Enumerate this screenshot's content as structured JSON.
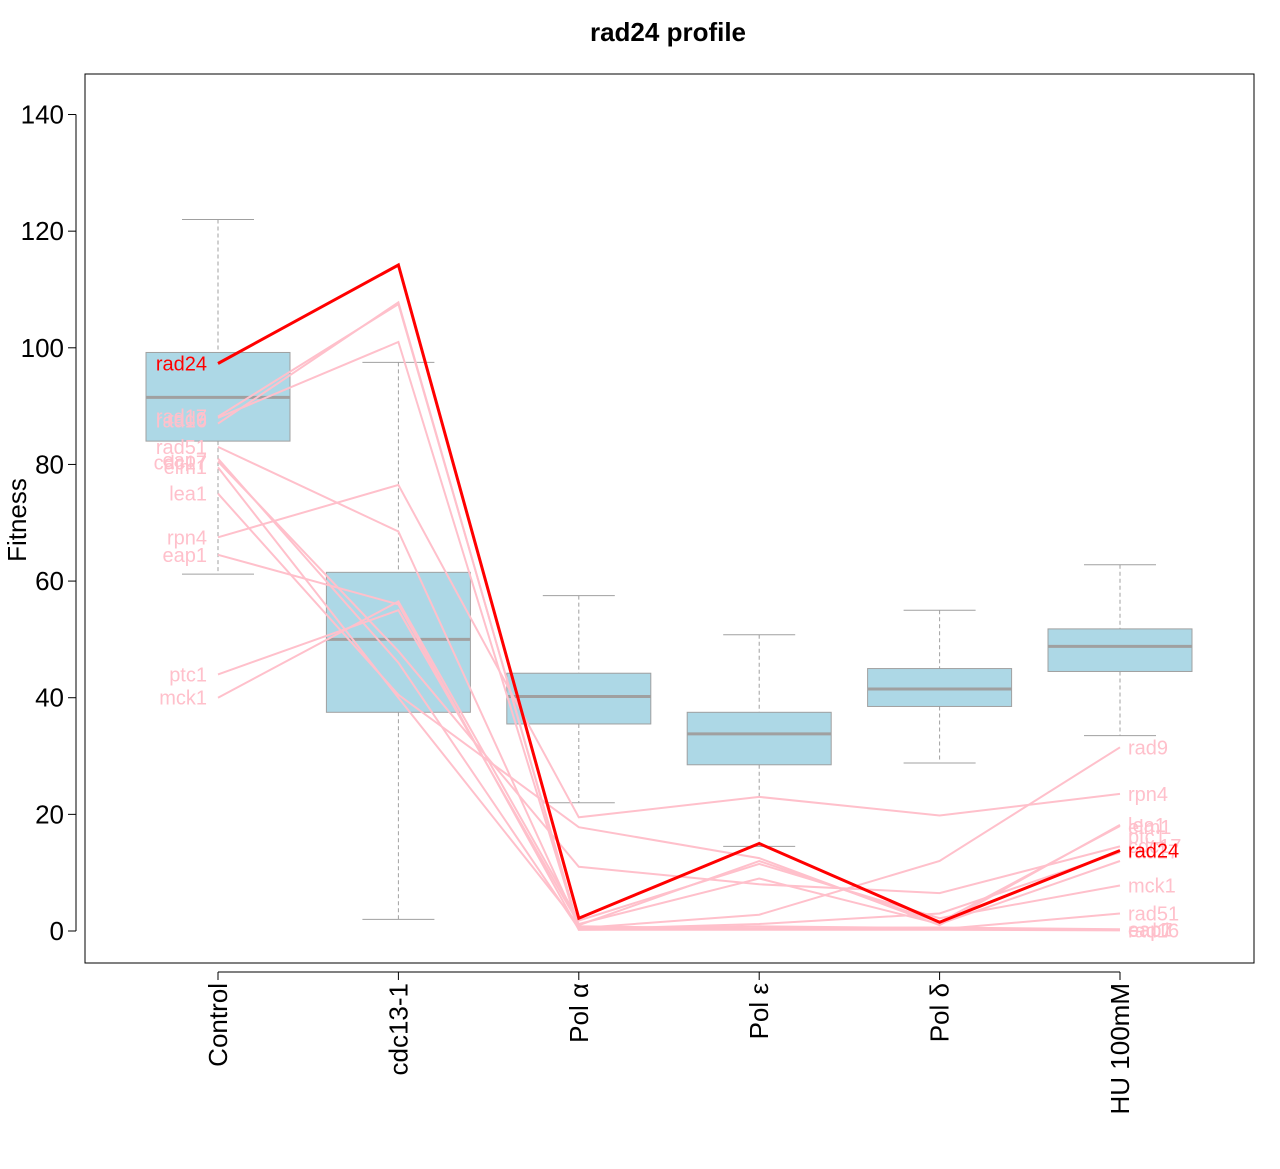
{
  "chart_data": {
    "type": "box",
    "title": "rad24 profile",
    "ylabel": "Fitness",
    "xlabel": "",
    "ylim": [
      -5,
      146
    ],
    "yticks": [
      0,
      20,
      40,
      60,
      80,
      100,
      120,
      140
    ],
    "categories": [
      "Control",
      "cdc13-1",
      "Pol α",
      "Pol ε",
      "Pol δ",
      "HU 100mM"
    ],
    "boxes": [
      {
        "category": "Control",
        "whisker_low": 61.2,
        "q1": 84,
        "median": 91.5,
        "q3": 99.2,
        "whisker_high": 122
      },
      {
        "category": "cdc13-1",
        "whisker_low": 2,
        "q1": 37.5,
        "median": 50,
        "q3": 61.5,
        "whisker_high": 97.5
      },
      {
        "category": "Pol α",
        "whisker_low": 22,
        "q1": 35.5,
        "median": 40.2,
        "q3": 44.2,
        "whisker_high": 57.5
      },
      {
        "category": "Pol ε",
        "whisker_low": 14.5,
        "q1": 28.5,
        "median": 33.8,
        "q3": 37.5,
        "whisker_high": 50.8
      },
      {
        "category": "Pol δ",
        "whisker_low": 28.8,
        "q1": 38.5,
        "median": 41.5,
        "q3": 45,
        "whisker_high": 55
      },
      {
        "category": "HU 100mM",
        "whisker_low": 33.5,
        "q1": 44.5,
        "median": 48.8,
        "q3": 51.8,
        "whisker_high": 62.8
      }
    ],
    "highlight_color": "#ff0000",
    "gene_color": "#ffc0cb",
    "box_fill": "#add8e6",
    "median_color": "#a0a0a0",
    "series": [
      {
        "name": "rad24",
        "values": [
          97.3,
          114.2,
          2.2,
          15,
          1.5,
          13.8
        ],
        "highlight": true
      },
      {
        "name": "rad9",
        "values": [
          88.2,
          107.5,
          0.5,
          2.8,
          12,
          31.5
        ]
      },
      {
        "name": "rad17",
        "values": [
          88,
          101,
          0.3,
          1.2,
          3,
          13.5
        ]
      },
      {
        "name": "rad51",
        "values": [
          83,
          68.5,
          0.8,
          0.4,
          0.3,
          3
        ]
      },
      {
        "name": "cdc17",
        "values": [
          80.5,
          48,
          11,
          8,
          6.5,
          14.5
        ]
      },
      {
        "name": "eap1",
        "values": [
          64.5,
          56,
          0.2,
          0.5,
          0.6,
          0.3
        ]
      },
      {
        "name": "elm1",
        "values": [
          79.5,
          40,
          1,
          12,
          1.5,
          18
        ]
      },
      {
        "name": "lea1",
        "values": [
          75,
          40.5,
          17.8,
          12.5,
          1,
          18.2
        ]
      },
      {
        "name": "rpn4",
        "values": [
          67.5,
          76.5,
          19.5,
          23,
          19.8,
          23.5
        ]
      },
      {
        "name": "ptc1",
        "values": [
          44,
          55,
          1.2,
          9,
          1.2,
          12
        ]
      },
      {
        "name": "mck1",
        "values": [
          40,
          56.5,
          1.8,
          11.5,
          2.2,
          7.8
        ]
      },
      {
        "name": "eap7",
        "values": [
          81,
          46,
          0.4,
          0.8,
          0.5,
          0.2
        ]
      },
      {
        "name": "rad16",
        "values": [
          87,
          107.8,
          0.2,
          0.2,
          0.2,
          0.1
        ]
      }
    ],
    "left_labels": [
      {
        "text": "rad24",
        "y": 97.3,
        "highlight": true
      },
      {
        "text": "rad17",
        "y": 88.2
      },
      {
        "text": "rad9",
        "y": 87.8
      },
      {
        "text": "rad16",
        "y": 87.5
      },
      {
        "text": "rad51",
        "y": 83
      },
      {
        "text": "eap7",
        "y": 80.8
      },
      {
        "text": "cdc17",
        "y": 80.3
      },
      {
        "text": "elm1",
        "y": 79.6
      },
      {
        "text": "lea1",
        "y": 75
      },
      {
        "text": "rpn4",
        "y": 67.5
      },
      {
        "text": "eap1",
        "y": 64.5
      },
      {
        "text": "ptc1",
        "y": 44
      },
      {
        "text": "mck1",
        "y": 40
      }
    ],
    "right_labels": [
      {
        "text": "rad9",
        "y": 31.5
      },
      {
        "text": "rpn4",
        "y": 23.5
      },
      {
        "text": "lea1",
        "y": 18.2
      },
      {
        "text": "elm1",
        "y": 17.8
      },
      {
        "text": "ptc1",
        "y": 16.2
      },
      {
        "text": "cdc17",
        "y": 14.6
      },
      {
        "text": "rad17",
        "y": 13.6
      },
      {
        "text": "rad24",
        "y": 13.8,
        "highlight": true
      },
      {
        "text": "mck1",
        "y": 7.8
      },
      {
        "text": "rad51",
        "y": 3
      },
      {
        "text": "eap1",
        "y": 0.3
      },
      {
        "text": "eap7",
        "y": 0.2
      },
      {
        "text": "rad16",
        "y": 0.1
      }
    ]
  }
}
